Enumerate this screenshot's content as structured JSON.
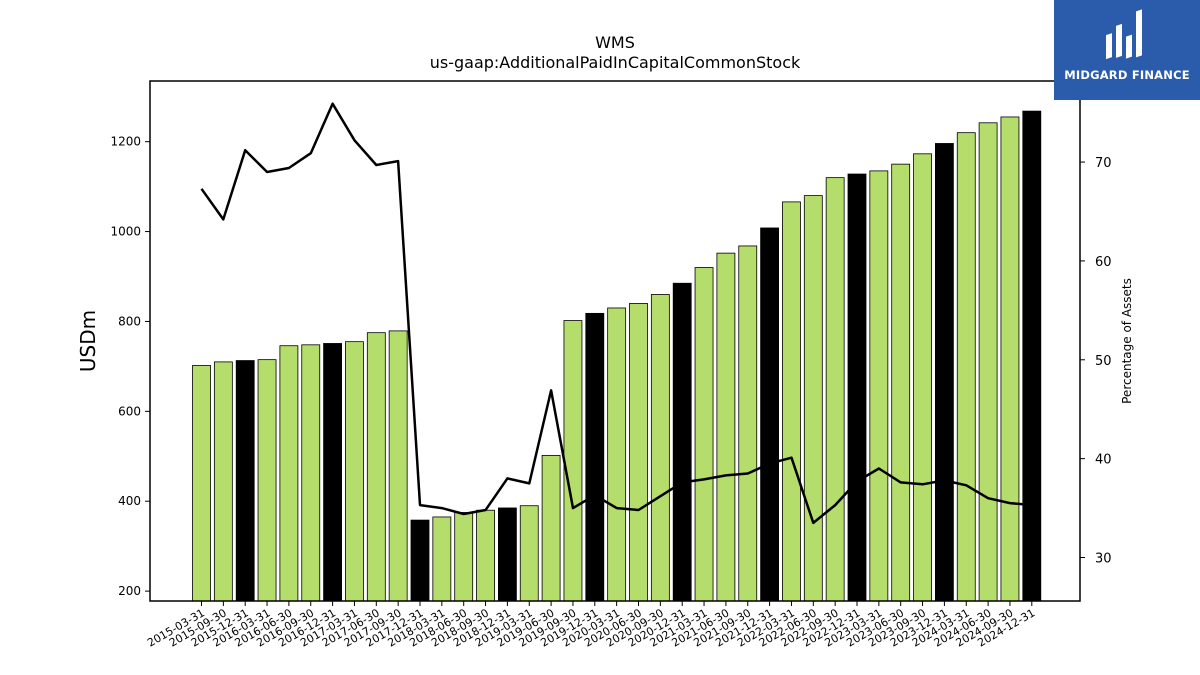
{
  "brand": {
    "name": "MIDGARD FINANCE",
    "bg_color": "#2a5cab"
  },
  "chart_data": {
    "type": "bar",
    "title": "WMS",
    "subtitle": "us-gaap:AdditionalPaidInCapitalCommonStock",
    "ylabel": "USDm",
    "y2label": "Percentage of Assets",
    "ylim": [
      178,
      1335
    ],
    "y2lim": [
      25.6,
      78.2
    ],
    "yticks": [
      200,
      400,
      600,
      800,
      1000,
      1200
    ],
    "y2ticks": [
      30,
      40,
      50,
      60,
      70
    ],
    "bar_colors": {
      "quarter": "#b5dd6b",
      "year_end": "#000000"
    },
    "line_color": "#000000",
    "categories": [
      "2015-03-31",
      "2015-09-30",
      "2015-12-31",
      "2016-03-31",
      "2016-06-30",
      "2016-09-30",
      "2016-12-31",
      "2017-03-31",
      "2017-06-30",
      "2017-09-30",
      "2017-12-31",
      "2018-03-31",
      "2018-06-30",
      "2018-09-30",
      "2018-12-31",
      "2019-03-31",
      "2019-06-30",
      "2019-09-30",
      "2019-12-31",
      "2020-03-31",
      "2020-06-30",
      "2020-09-30",
      "2020-12-31",
      "2021-03-31",
      "2021-06-30",
      "2021-09-30",
      "2021-12-31",
      "2022-03-31",
      "2022-06-30",
      "2022-09-30",
      "2022-12-31",
      "2023-03-31",
      "2023-06-30",
      "2023-09-30",
      "2023-12-31",
      "2024-03-31",
      "2024-06-30",
      "2024-09-30",
      "2024-12-31"
    ],
    "series": [
      {
        "type": "bar",
        "values": [
          702,
          710,
          713,
          715,
          746,
          748,
          751,
          755,
          775,
          779,
          358,
          365,
          375,
          380,
          385,
          390,
          502,
          802,
          818,
          830,
          840,
          860,
          885,
          920,
          952,
          968,
          1008,
          1066,
          1080,
          1120,
          1128,
          1135,
          1150,
          1173,
          1196,
          1220,
          1242,
          1255,
          1268
        ],
        "year_end": [
          false,
          false,
          true,
          false,
          false,
          false,
          true,
          false,
          false,
          false,
          true,
          false,
          false,
          false,
          true,
          false,
          false,
          false,
          true,
          false,
          false,
          false,
          true,
          false,
          false,
          false,
          true,
          false,
          false,
          false,
          true,
          false,
          false,
          false,
          true,
          false,
          false,
          false,
          true
        ]
      },
      {
        "type": "line",
        "axis": "right",
        "values": [
          67.3,
          64.2,
          71.2,
          69.0,
          69.4,
          70.9,
          75.9,
          72.2,
          69.7,
          70.1,
          35.3,
          35.0,
          34.4,
          34.8,
          38.0,
          37.5,
          46.9,
          35.0,
          36.3,
          35.0,
          34.8,
          36.2,
          37.6,
          37.9,
          38.3,
          38.5,
          39.5,
          40.1,
          33.5,
          35.3,
          37.7,
          39.0,
          37.6,
          37.4,
          37.8,
          37.3,
          36.0,
          35.5,
          35.3
        ]
      }
    ]
  }
}
